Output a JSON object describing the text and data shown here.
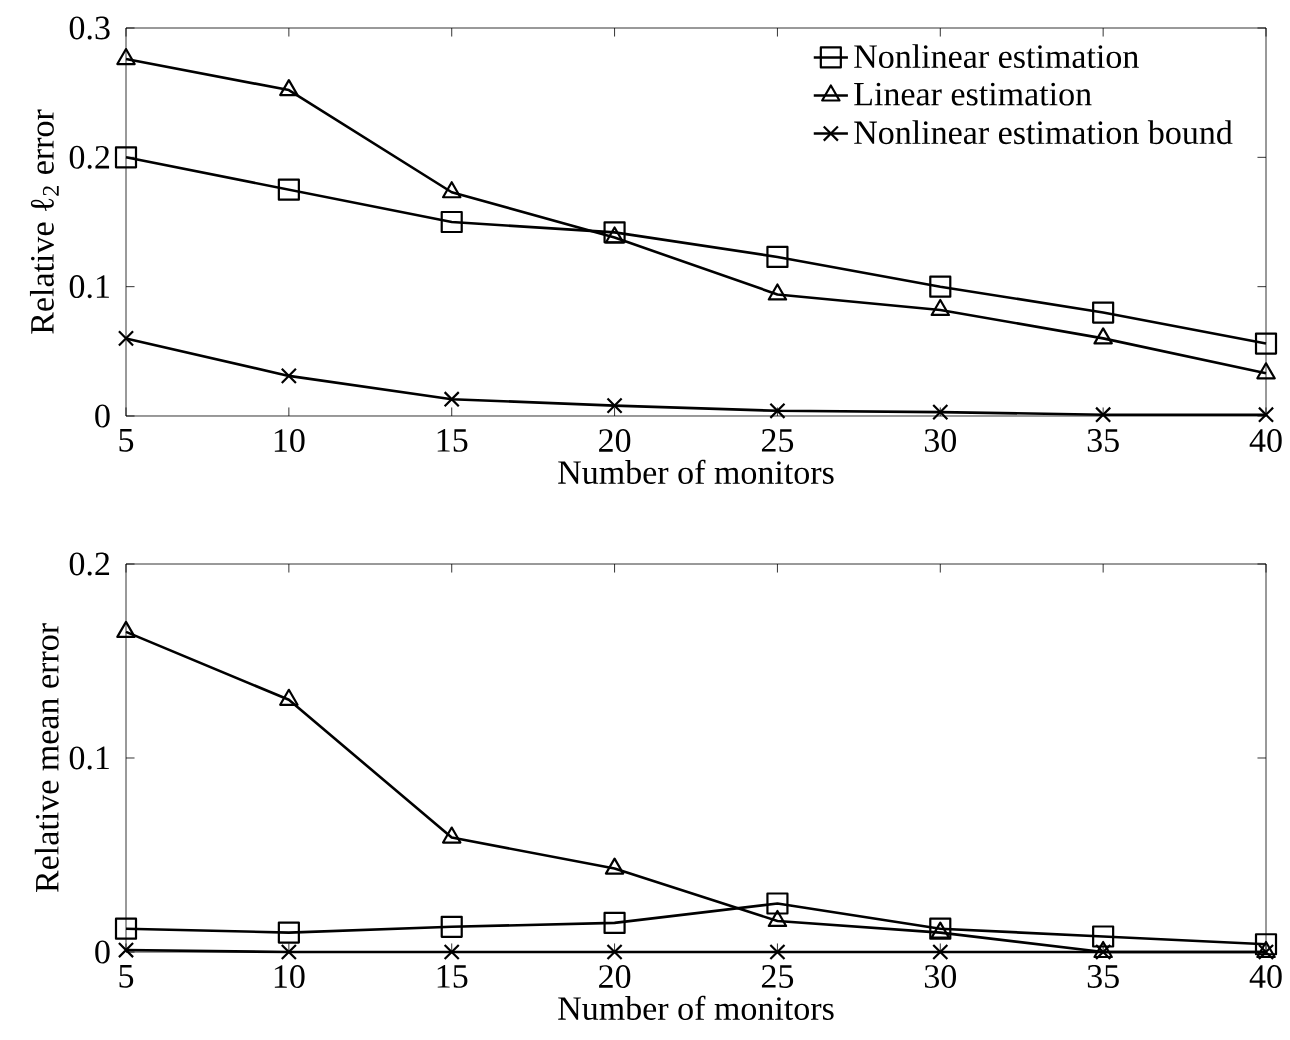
{
  "chart_data": [
    {
      "type": "line",
      "xlabel": "Number of monitors",
      "ylabel": "Relative ℓ$_{2}$ error",
      "x": [
        5,
        10,
        15,
        20,
        25,
        30,
        35,
        40
      ],
      "xlim": [
        5,
        40
      ],
      "ylim": [
        0,
        0.3
      ],
      "xticks": [
        5,
        10,
        15,
        20,
        25,
        30,
        35,
        40
      ],
      "yticks": [
        0,
        0.1,
        0.2,
        0.3
      ],
      "legend": "top right",
      "grid": false,
      "line_style": "solid",
      "series": [
        {
          "name": "Nonlinear estimation",
          "color": "#000000",
          "marker": "square",
          "values": [
            0.2,
            0.175,
            0.15,
            0.142,
            0.123,
            0.1,
            0.08,
            0.056
          ]
        },
        {
          "name": "Linear estimation",
          "color": "#000000",
          "marker": "triangle",
          "values": [
            0.276,
            0.252,
            0.173,
            0.138,
            0.094,
            0.082,
            0.06,
            0.033
          ]
        },
        {
          "name": "Nonlinear estimation bound",
          "color": "#000000",
          "marker": "cross",
          "values": [
            0.06,
            0.031,
            0.013,
            0.008,
            0.004,
            0.003,
            0.001,
            0.001
          ]
        }
      ]
    },
    {
      "type": "line",
      "xlabel": "Number of monitors",
      "ylabel": "Relative mean error",
      "x": [
        5,
        10,
        15,
        20,
        25,
        30,
        35,
        40
      ],
      "xlim": [
        5,
        40
      ],
      "ylim": [
        0,
        0.2
      ],
      "xticks": [
        5,
        10,
        15,
        20,
        25,
        30,
        35,
        40
      ],
      "yticks": [
        0,
        0.1,
        0.2
      ],
      "grid": false,
      "line_style": "solid",
      "series": [
        {
          "color": "#000000",
          "marker": "square",
          "values": [
            0.012,
            0.01,
            0.013,
            0.015,
            0.025,
            0.012,
            0.008,
            0.004
          ]
        },
        {
          "color": "#000000",
          "marker": "triangle",
          "values": [
            0.165,
            0.13,
            0.059,
            0.043,
            0.016,
            0.01,
            0,
            0
          ]
        },
        {
          "color": "#000000",
          "marker": "cross",
          "values": [
            0.001,
            0,
            0,
            0,
            0,
            0,
            0,
            0
          ]
        }
      ]
    }
  ]
}
